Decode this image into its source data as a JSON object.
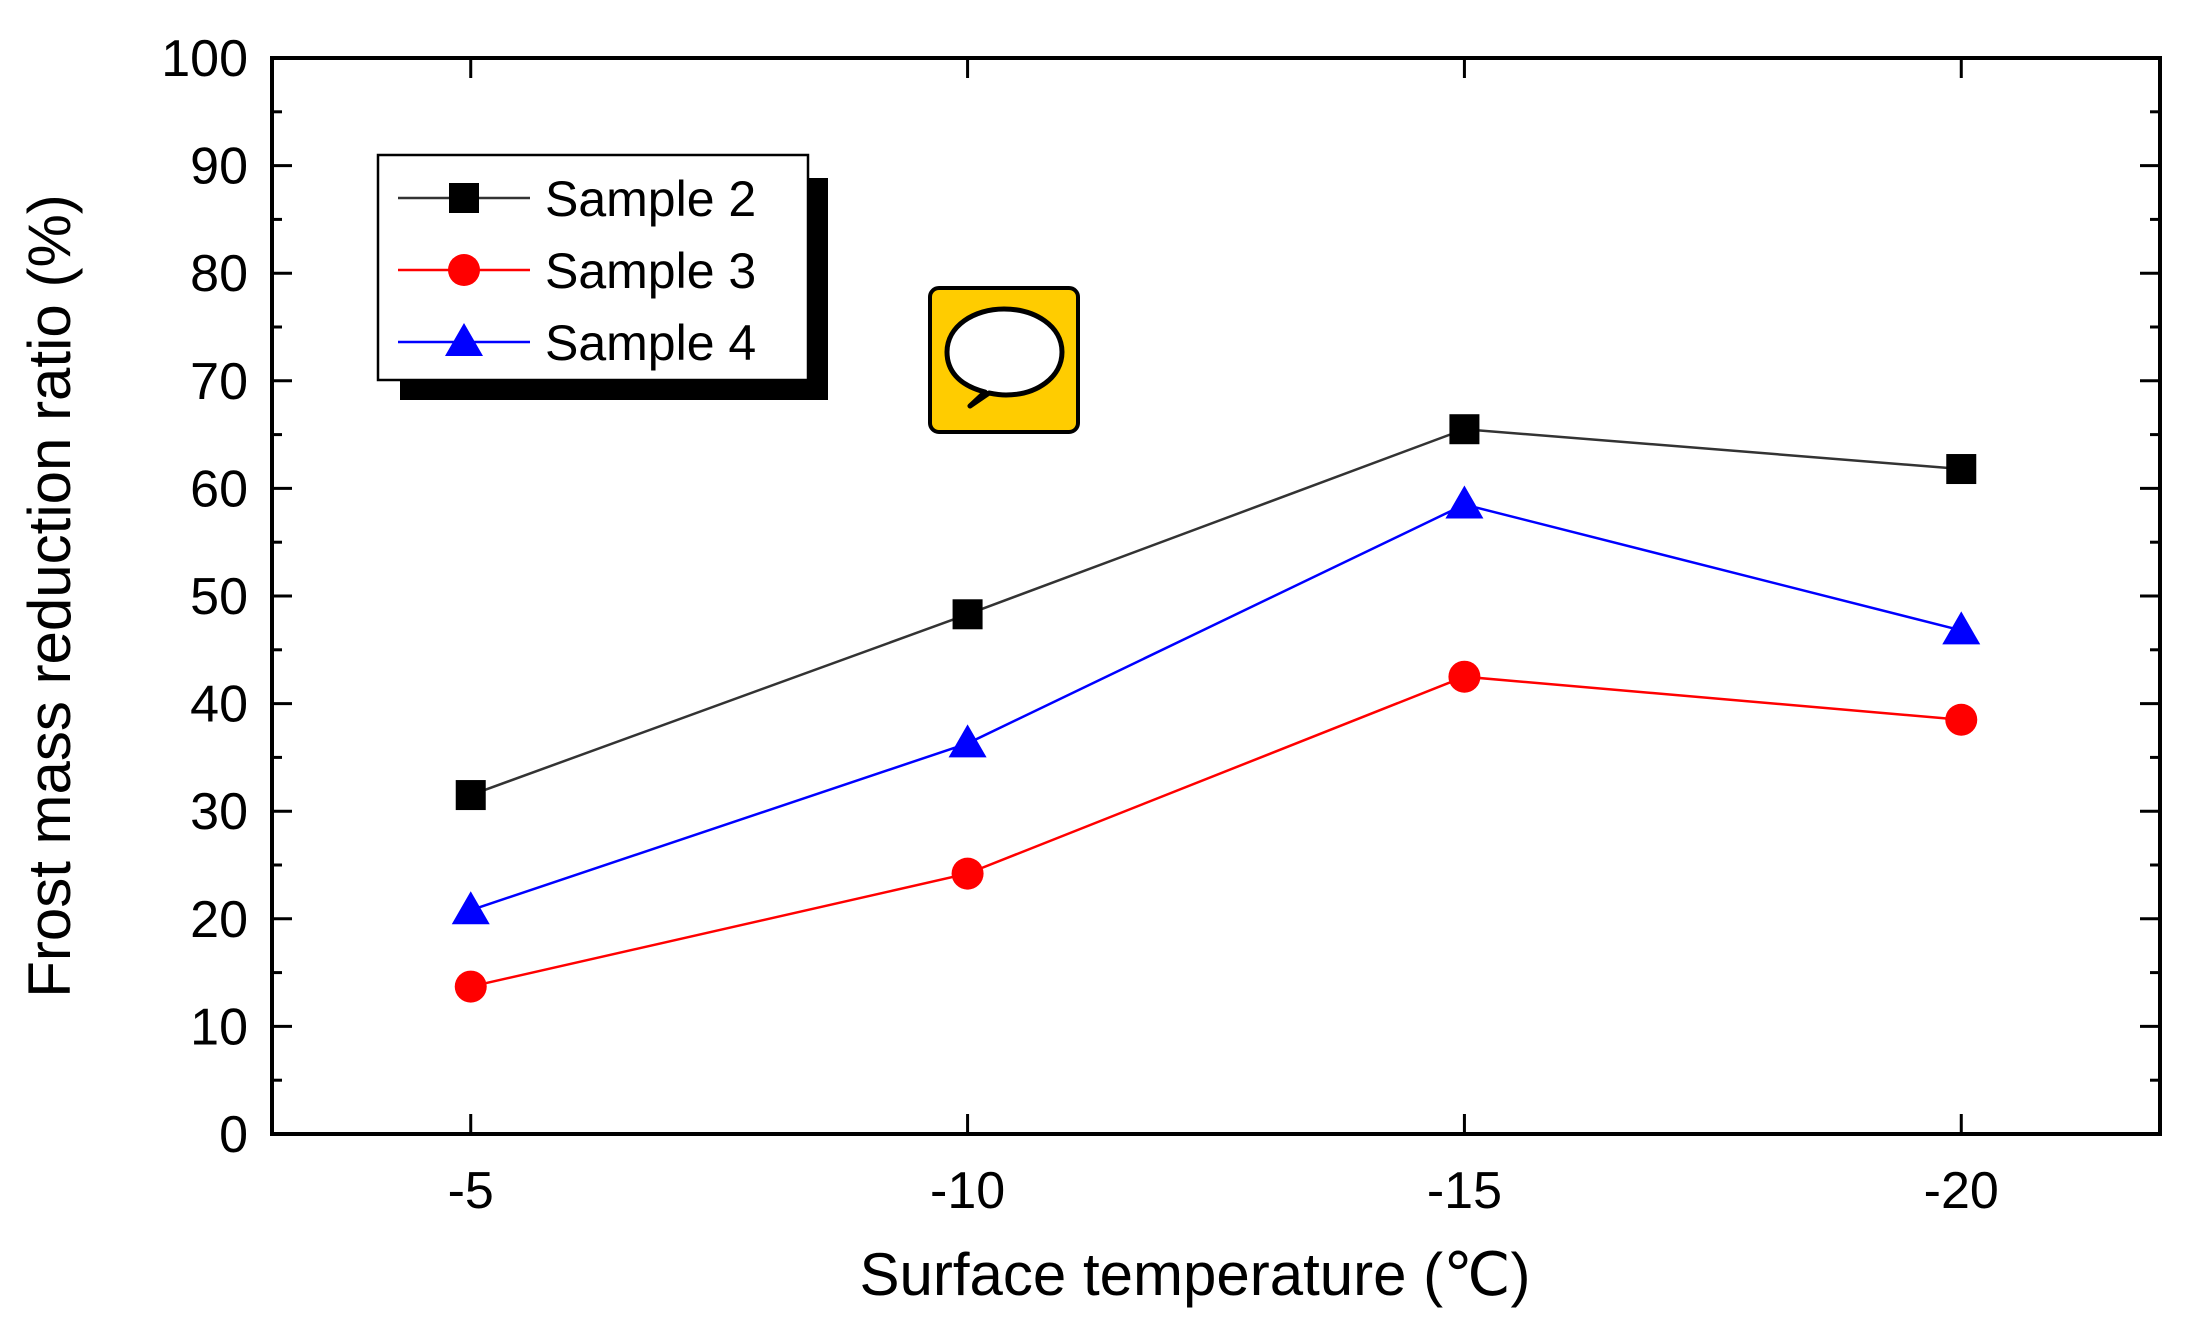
{
  "chart_data": {
    "type": "line",
    "title": "",
    "xlabel": "Surface temperature (℃)",
    "ylabel": "Frost mass reduction ratio (%)",
    "categories": [
      "-5",
      "-10",
      "-15",
      "-20"
    ],
    "x": [
      -5,
      -10,
      -15,
      -20
    ],
    "xlim": [
      -3,
      -22
    ],
    "ylim": [
      0,
      100
    ],
    "yticks": [
      0,
      10,
      20,
      30,
      40,
      50,
      60,
      70,
      80,
      90,
      100
    ],
    "grid": false,
    "legend_position": "top-left",
    "series": [
      {
        "name": "Sample 2",
        "color": "#000000",
        "line_color": "#333333",
        "marker": "square",
        "values": [
          31.5,
          48.3,
          65.5,
          61.8
        ]
      },
      {
        "name": "Sample 3",
        "color": "#ff0000",
        "line_color": "#ff0000",
        "marker": "circle",
        "values": [
          13.7,
          24.2,
          42.5,
          38.5
        ]
      },
      {
        "name": "Sample 4",
        "color": "#0000ff",
        "line_color": "#0000ff",
        "marker": "triangle",
        "values": [
          20.8,
          36.3,
          58.5,
          46.8
        ]
      }
    ]
  },
  "annotation": {
    "icon": "speech-bubble-icon",
    "color": "#ffcc00"
  }
}
